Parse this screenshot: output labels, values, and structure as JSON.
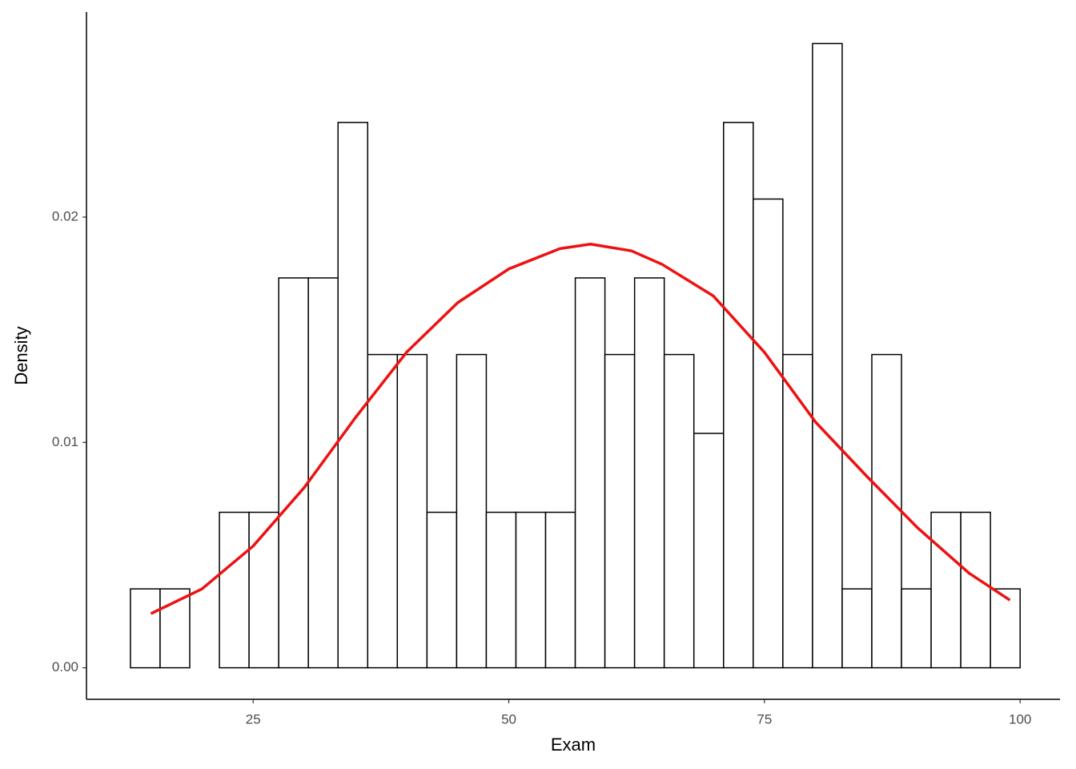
{
  "chart_data": {
    "type": "histogram",
    "xlabel": "Exam",
    "ylabel": "Density",
    "bins": [
      13.0,
      15.9,
      18.8,
      21.7,
      24.6,
      27.5,
      30.4,
      33.3,
      36.2,
      39.1,
      42.0,
      44.9,
      47.8,
      50.7,
      53.6,
      56.5,
      59.4,
      62.3,
      65.2,
      68.1,
      71.0,
      73.9,
      76.8,
      79.7,
      82.6,
      85.5,
      88.4,
      91.3,
      94.2,
      97.1,
      100.0
    ],
    "values": [
      0.0035,
      0.0035,
      0,
      0.0069,
      0.0069,
      0.0173,
      0.0173,
      0.0242,
      0.0139,
      0.0139,
      0.0069,
      0.0139,
      0.0069,
      0.0069,
      0.0069,
      0.0173,
      0.0139,
      0.0173,
      0.0139,
      0.0104,
      0.0242,
      0.0208,
      0.0139,
      0.0277,
      0.0035,
      0.0139,
      0.0035,
      0.0069,
      0.0069,
      0.0035
    ],
    "color": "#ffffff",
    "edgecolor": "#000000",
    "density": {
      "color": "#ee1111",
      "x": [
        15,
        20,
        25,
        30,
        35,
        40,
        45,
        50,
        55,
        58,
        62,
        65,
        70,
        75,
        80,
        85,
        90,
        95,
        99
      ],
      "values": [
        0.0024,
        0.0035,
        0.0054,
        0.008,
        0.0111,
        0.014,
        0.0162,
        0.0177,
        0.0186,
        0.0188,
        0.0185,
        0.0179,
        0.0165,
        0.014,
        0.0109,
        0.0085,
        0.0062,
        0.0042,
        0.003
      ]
    },
    "xlim": [
      8.7,
      103.9
    ],
    "xticks": [
      25,
      50,
      75,
      100
    ],
    "ylim": [
      -0.0014,
      0.0291
    ],
    "yticks": [
      {
        "value": 0,
        "label": "0.00"
      },
      0.01,
      0.02
    ],
    "grid": false
  }
}
